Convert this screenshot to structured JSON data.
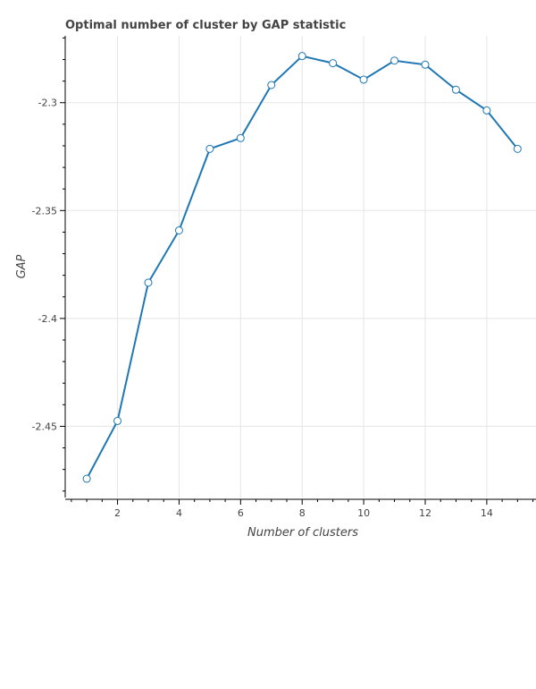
{
  "chart_data": {
    "type": "line",
    "title": "Optimal number of cluster by GAP statistic",
    "xlabel": "Number of clusters",
    "ylabel": "GAP",
    "xlim": [
      0.3,
      15.6
    ],
    "ylim": [
      -2.483,
      -2.269
    ],
    "x_ticks": [
      2,
      4,
      6,
      8,
      10,
      12,
      14
    ],
    "x_tick_labels": [
      "2",
      "4",
      "6",
      "8",
      "10",
      "12",
      "14"
    ],
    "y_ticks": [
      -2.3,
      -2.35,
      -2.4,
      -2.45
    ],
    "y_tick_labels": [
      "-2.3",
      "-2.35",
      "-2.4",
      "-2.45"
    ],
    "grid": true,
    "line_color": "#1f77b4",
    "series": [
      {
        "x": [
          1,
          2,
          3,
          4,
          5,
          6,
          7,
          8,
          9,
          10,
          11,
          12,
          13,
          14,
          15
        ],
        "values": [
          -2.4743,
          -2.4475,
          -2.3834,
          -2.3592,
          -2.3214,
          -2.3164,
          -2.2918,
          -2.2784,
          -2.2817,
          -2.2893,
          -2.2805,
          -2.2824,
          -2.294,
          -2.3036,
          -2.3214
        ]
      }
    ]
  }
}
